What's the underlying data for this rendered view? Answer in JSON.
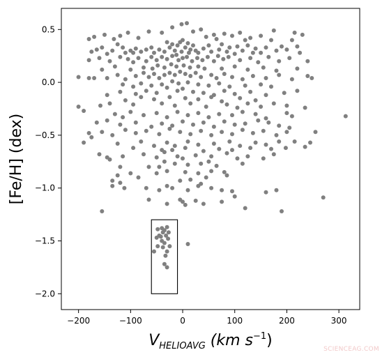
{
  "chart_data": {
    "type": "scatter",
    "xlabel": {
      "base": "V",
      "sub": "HELIOAVG",
      "unit_text": " (km s",
      "sup": "−1",
      "close": ")"
    },
    "ylabel": "[Fe/H] (dex)",
    "xlim": [
      -233,
      340
    ],
    "ylim": [
      -2.15,
      0.7
    ],
    "xticks": [
      -200,
      -100,
      0,
      100,
      200,
      300
    ],
    "xtick_labels": [
      "−200",
      "−100",
      "0",
      "100",
      "200",
      "300"
    ],
    "yticks": [
      0.5,
      0.0,
      -0.5,
      -1.0,
      -1.5,
      -2.0
    ],
    "ytick_labels": [
      "0.5",
      "0.0",
      "−0.5",
      "−1.0",
      "−1.5",
      "−2.0"
    ],
    "point_color": "#808080",
    "highlight_box": {
      "x": [
        -60,
        -10
      ],
      "y": [
        -2.0,
        -1.3
      ]
    },
    "grid": false,
    "points": [
      [
        -2,
        0.55
      ],
      [
        8,
        0.56
      ],
      [
        -20,
        0.52
      ],
      [
        35,
        0.5
      ],
      [
        20,
        0.48
      ],
      [
        -40,
        0.47
      ],
      [
        -65,
        0.48
      ],
      [
        -105,
        0.47
      ],
      [
        -150,
        0.45
      ],
      [
        -170,
        0.43
      ],
      [
        -180,
        0.41
      ],
      [
        -132,
        0.41
      ],
      [
        60,
        0.45
      ],
      [
        80,
        0.46
      ],
      [
        95,
        0.44
      ],
      [
        110,
        0.47
      ],
      [
        130,
        0.42
      ],
      [
        150,
        0.44
      ],
      [
        175,
        0.49
      ],
      [
        215,
        0.47
      ],
      [
        230,
        0.45
      ],
      [
        120,
        0.4
      ],
      [
        170,
        0.4
      ],
      [
        210,
        0.4
      ],
      [
        -85,
        0.42
      ],
      [
        -120,
        0.44
      ],
      [
        45,
        0.43
      ],
      [
        65,
        0.41
      ],
      [
        -30,
        0.38
      ],
      [
        -20,
        0.36
      ],
      [
        -10,
        0.35
      ],
      [
        -5,
        0.38
      ],
      [
        0,
        0.4
      ],
      [
        5,
        0.33
      ],
      [
        10,
        0.37
      ],
      [
        15,
        0.31
      ],
      [
        20,
        0.35
      ],
      [
        25,
        0.3
      ],
      [
        -15,
        0.3
      ],
      [
        -25,
        0.33
      ],
      [
        -35,
        0.29
      ],
      [
        -45,
        0.31
      ],
      [
        -55,
        0.28
      ],
      [
        -60,
        0.33
      ],
      [
        -70,
        0.31
      ],
      [
        -80,
        0.29
      ],
      [
        -90,
        0.32
      ],
      [
        -95,
        0.28
      ],
      [
        -100,
        0.3
      ],
      [
        -110,
        0.28
      ],
      [
        -115,
        0.33
      ],
      [
        -125,
        0.36
      ],
      [
        -135,
        0.3
      ],
      [
        -145,
        0.27
      ],
      [
        -155,
        0.33
      ],
      [
        -165,
        0.31
      ],
      [
        -175,
        0.29
      ],
      [
        30,
        0.28
      ],
      [
        40,
        0.32
      ],
      [
        50,
        0.35
      ],
      [
        55,
        0.29
      ],
      [
        70,
        0.31
      ],
      [
        75,
        0.36
      ],
      [
        85,
        0.29
      ],
      [
        90,
        0.33
      ],
      [
        100,
        0.27
      ],
      [
        105,
        0.34
      ],
      [
        115,
        0.3
      ],
      [
        125,
        0.35
      ],
      [
        135,
        0.28
      ],
      [
        140,
        0.32
      ],
      [
        150,
        0.28
      ],
      [
        160,
        0.33
      ],
      [
        180,
        0.3
      ],
      [
        190,
        0.34
      ],
      [
        200,
        0.31
      ],
      [
        220,
        0.34
      ],
      [
        225,
        0.28
      ],
      [
        -2,
        0.29
      ],
      [
        12,
        0.28
      ],
      [
        -12,
        0.26
      ],
      [
        -40,
        0.24
      ],
      [
        -30,
        0.22
      ],
      [
        -20,
        0.25
      ],
      [
        -8,
        0.21
      ],
      [
        0,
        0.23
      ],
      [
        8,
        0.24
      ],
      [
        18,
        0.2
      ],
      [
        28,
        0.23
      ],
      [
        38,
        0.21
      ],
      [
        48,
        0.24
      ],
      [
        60,
        0.2
      ],
      [
        68,
        0.25
      ],
      [
        78,
        0.22
      ],
      [
        88,
        0.24
      ],
      [
        -50,
        0.21
      ],
      [
        -60,
        0.24
      ],
      [
        -70,
        0.2
      ],
      [
        -85,
        0.23
      ],
      [
        -95,
        0.19
      ],
      [
        -105,
        0.22
      ],
      [
        -120,
        0.24
      ],
      [
        -140,
        0.2
      ],
      [
        -160,
        0.23
      ],
      [
        -180,
        0.21
      ],
      [
        110,
        0.21
      ],
      [
        130,
        0.23
      ],
      [
        145,
        0.19
      ],
      [
        165,
        0.24
      ],
      [
        185,
        0.2
      ],
      [
        205,
        0.23
      ],
      [
        240,
        0.2
      ],
      [
        -22,
        0.17
      ],
      [
        -12,
        0.15
      ],
      [
        2,
        0.16
      ],
      [
        14,
        0.14
      ],
      [
        -35,
        0.14
      ],
      [
        -48,
        0.16
      ],
      [
        -58,
        0.13
      ],
      [
        30,
        0.15
      ],
      [
        42,
        0.13
      ],
      [
        -75,
        0.14
      ],
      [
        -100,
        0.12
      ],
      [
        -130,
        0.15
      ],
      [
        -155,
        0.12
      ],
      [
        75,
        0.13
      ],
      [
        100,
        0.15
      ],
      [
        125,
        0.12
      ],
      [
        155,
        0.14
      ],
      [
        180,
        0.11
      ],
      [
        220,
        0.13
      ],
      [
        -25,
        0.09
      ],
      [
        -15,
        0.07
      ],
      [
        -5,
        0.1
      ],
      [
        5,
        0.08
      ],
      [
        15,
        0.06
      ],
      [
        25,
        0.09
      ],
      [
        35,
        0.05
      ],
      [
        -35,
        0.07
      ],
      [
        -45,
        0.04
      ],
      [
        -55,
        0.08
      ],
      [
        -65,
        0.05
      ],
      [
        -75,
        0.09
      ],
      [
        -90,
        0.06
      ],
      [
        -110,
        0.03
      ],
      [
        -125,
        0.07
      ],
      [
        -145,
        0.04
      ],
      [
        -170,
        0.04
      ],
      [
        -180,
        0.04
      ],
      [
        -200,
        0.05
      ],
      [
        55,
        0.07
      ],
      [
        65,
        0.04
      ],
      [
        80,
        0.08
      ],
      [
        95,
        0.05
      ],
      [
        115,
        0.03
      ],
      [
        135,
        0.06
      ],
      [
        160,
        0.04
      ],
      [
        185,
        0.07
      ],
      [
        210,
        0.03
      ],
      [
        240,
        0.06
      ],
      [
        248,
        0.04
      ],
      [
        -20,
        0.01
      ],
      [
        -8,
        -0.01
      ],
      [
        10,
        0.0
      ],
      [
        -40,
        -0.02
      ],
      [
        -60,
        -0.03
      ],
      [
        -80,
        -0.01
      ],
      [
        -95,
        -0.04
      ],
      [
        -115,
        -0.02
      ],
      [
        30,
        -0.02
      ],
      [
        50,
        -0.03
      ],
      [
        70,
        -0.01
      ],
      [
        90,
        -0.04
      ],
      [
        120,
        -0.03
      ],
      [
        150,
        -0.02
      ],
      [
        170,
        -0.04
      ],
      [
        -30,
        -0.05
      ],
      [
        0,
        -0.06
      ],
      [
        -10,
        -0.08
      ],
      [
        20,
        -0.09
      ],
      [
        -50,
        -0.1
      ],
      [
        -70,
        -0.08
      ],
      [
        -90,
        -0.11
      ],
      [
        -120,
        -0.09
      ],
      [
        -145,
        -0.12
      ],
      [
        40,
        -0.1
      ],
      [
        60,
        -0.12
      ],
      [
        80,
        -0.08
      ],
      [
        100,
        -0.11
      ],
      [
        130,
        -0.09
      ],
      [
        160,
        -0.12
      ],
      [
        195,
        -0.1
      ],
      [
        220,
        -0.08
      ],
      [
        -25,
        -0.14
      ],
      [
        5,
        -0.15
      ],
      [
        -55,
        -0.16
      ],
      [
        -80,
        -0.14
      ],
      [
        -110,
        -0.17
      ],
      [
        30,
        -0.16
      ],
      [
        55,
        -0.14
      ],
      [
        75,
        -0.18
      ],
      [
        110,
        -0.15
      ],
      [
        140,
        -0.17
      ],
      [
        -140,
        -0.2
      ],
      [
        -158,
        -0.22
      ],
      [
        -200,
        -0.23
      ],
      [
        -190,
        -0.27
      ],
      [
        -95,
        -0.21
      ],
      [
        -40,
        -0.2
      ],
      [
        -15,
        -0.22
      ],
      [
        15,
        -0.2
      ],
      [
        45,
        -0.23
      ],
      [
        85,
        -0.21
      ],
      [
        105,
        -0.24
      ],
      [
        125,
        -0.2
      ],
      [
        150,
        -0.23
      ],
      [
        175,
        -0.2
      ],
      [
        200,
        -0.22
      ],
      [
        235,
        -0.24
      ],
      [
        313,
        -0.32
      ],
      [
        -130,
        -0.3
      ],
      [
        -115,
        -0.33
      ],
      [
        -100,
        -0.28
      ],
      [
        -75,
        -0.31
      ],
      [
        -50,
        -0.29
      ],
      [
        -30,
        -0.33
      ],
      [
        -10,
        -0.28
      ],
      [
        10,
        -0.31
      ],
      [
        30,
        -0.29
      ],
      [
        50,
        -0.33
      ],
      [
        70,
        -0.3
      ],
      [
        95,
        -0.31
      ],
      [
        115,
        -0.28
      ],
      [
        140,
        -0.3
      ],
      [
        160,
        -0.34
      ],
      [
        200,
        -0.29
      ],
      [
        210,
        -0.32
      ],
      [
        -165,
        -0.38
      ],
      [
        -145,
        -0.36
      ],
      [
        -120,
        -0.4
      ],
      [
        -90,
        -0.38
      ],
      [
        -60,
        -0.42
      ],
      [
        -40,
        -0.39
      ],
      [
        -20,
        -0.41
      ],
      [
        0,
        -0.37
      ],
      [
        20,
        -0.4
      ],
      [
        40,
        -0.38
      ],
      [
        60,
        -0.42
      ],
      [
        80,
        -0.37
      ],
      [
        100,
        -0.4
      ],
      [
        120,
        -0.39
      ],
      [
        145,
        -0.36
      ],
      [
        165,
        -0.38
      ],
      [
        185,
        -0.41
      ],
      [
        205,
        -0.43
      ],
      [
        -180,
        -0.48
      ],
      [
        -175,
        -0.52
      ],
      [
        -155,
        -0.47
      ],
      [
        -135,
        -0.5
      ],
      [
        -110,
        -0.45
      ],
      [
        -90,
        -0.48
      ],
      [
        -70,
        -0.46
      ],
      [
        -45,
        -0.49
      ],
      [
        -25,
        -0.44
      ],
      [
        -5,
        -0.47
      ],
      [
        15,
        -0.49
      ],
      [
        35,
        -0.46
      ],
      [
        55,
        -0.5
      ],
      [
        75,
        -0.47
      ],
      [
        95,
        -0.49
      ],
      [
        115,
        -0.45
      ],
      [
        135,
        -0.48
      ],
      [
        155,
        -0.46
      ],
      [
        180,
        -0.5
      ],
      [
        200,
        -0.47
      ],
      [
        255,
        -0.47
      ],
      [
        -190,
        -0.57
      ],
      [
        -125,
        -0.58
      ],
      [
        -80,
        -0.56
      ],
      [
        -55,
        -0.6
      ],
      [
        -30,
        -0.57
      ],
      [
        -15,
        -0.6
      ],
      [
        10,
        -0.56
      ],
      [
        30,
        -0.59
      ],
      [
        60,
        -0.58
      ],
      [
        90,
        -0.56
      ],
      [
        110,
        -0.6
      ],
      [
        140,
        -0.57
      ],
      [
        160,
        -0.59
      ],
      [
        185,
        -0.56
      ],
      [
        215,
        -0.56
      ],
      [
        245,
        -0.57
      ],
      [
        -95,
        -0.62
      ],
      [
        -40,
        -0.64
      ],
      [
        -20,
        -0.64
      ],
      [
        5,
        -0.62
      ],
      [
        40,
        -0.65
      ],
      [
        70,
        -0.63
      ],
      [
        95,
        -0.64
      ],
      [
        130,
        -0.62
      ],
      [
        170,
        -0.63
      ],
      [
        198,
        -0.62
      ],
      [
        235,
        -0.61
      ],
      [
        -160,
        -0.68
      ],
      [
        -145,
        -0.71
      ],
      [
        -140,
        -0.73
      ],
      [
        -115,
        -0.7
      ],
      [
        -75,
        -0.68
      ],
      [
        -50,
        -0.71
      ],
      [
        -35,
        -0.66
      ],
      [
        -10,
        -0.7
      ],
      [
        25,
        -0.69
      ],
      [
        55,
        -0.7
      ],
      [
        85,
        -0.67
      ],
      [
        105,
        -0.72
      ],
      [
        125,
        -0.7
      ],
      [
        155,
        -0.72
      ],
      [
        175,
        -0.68
      ],
      [
        -35,
        -0.75
      ],
      [
        -15,
        -0.77
      ],
      [
        0,
        -0.72
      ],
      [
        10,
        -0.78
      ],
      [
        35,
        -0.77
      ],
      [
        50,
        -0.75
      ],
      [
        65,
        -0.79
      ],
      [
        -120,
        -0.8
      ],
      [
        -65,
        -0.8
      ],
      [
        115,
        -0.77
      ],
      [
        -100,
        -0.86
      ],
      [
        -50,
        -0.86
      ],
      [
        -45,
        -0.8
      ],
      [
        -30,
        -0.84
      ],
      [
        5,
        -0.85
      ],
      [
        30,
        -0.86
      ],
      [
        55,
        -0.84
      ],
      [
        80,
        -0.85
      ],
      [
        85,
        -0.88
      ],
      [
        -85,
        -0.9
      ],
      [
        -135,
        -0.93
      ],
      [
        -125,
        -0.88
      ],
      [
        15,
        -0.92
      ],
      [
        45,
        -0.9
      ],
      [
        -5,
        -0.93
      ],
      [
        -70,
        -1.0
      ],
      [
        -30,
        -0.98
      ],
      [
        10,
        -1.02
      ],
      [
        30,
        -0.98
      ],
      [
        35,
        -0.96
      ],
      [
        -112,
        -1.0
      ],
      [
        -135,
        -0.98
      ],
      [
        -45,
        -1.02
      ],
      [
        75,
        -1.02
      ],
      [
        95,
        -1.03
      ],
      [
        -120,
        -0.95
      ],
      [
        -20,
        -1.0
      ],
      [
        160,
        -1.04
      ],
      [
        180,
        -1.02
      ],
      [
        55,
        -1.0
      ],
      [
        100,
        -1.08
      ],
      [
        270,
        -1.09
      ],
      [
        -65,
        -1.11
      ],
      [
        -5,
        -1.11
      ],
      [
        0,
        -1.13
      ],
      [
        25,
        -1.12
      ],
      [
        40,
        -1.15
      ],
      [
        -30,
        -1.15
      ],
      [
        75,
        -1.13
      ],
      [
        120,
        -1.19
      ],
      [
        -155,
        -1.22
      ],
      [
        190,
        -1.22
      ],
      [
        5,
        -1.16
      ],
      [
        -40,
        -1.38
      ],
      [
        -35,
        -1.4
      ],
      [
        -30,
        -1.37
      ],
      [
        -38,
        -1.42
      ],
      [
        -45,
        -1.45
      ],
      [
        -32,
        -1.45
      ],
      [
        -28,
        -1.48
      ],
      [
        -40,
        -1.5
      ],
      [
        -35,
        -1.52
      ],
      [
        -25,
        -1.55
      ],
      [
        -38,
        -1.56
      ],
      [
        -50,
        -1.47
      ],
      [
        -30,
        -1.6
      ],
      [
        -48,
        -1.55
      ],
      [
        -55,
        -1.6
      ],
      [
        -35,
        -1.72
      ],
      [
        -30,
        -1.75
      ],
      [
        -42,
        -1.46
      ],
      [
        -27,
        -1.42
      ],
      [
        -48,
        -1.39
      ],
      [
        -33,
        -1.64
      ],
      [
        10,
        -1.53
      ]
    ]
  },
  "watermark_text": "SCIENCEAG.COM"
}
